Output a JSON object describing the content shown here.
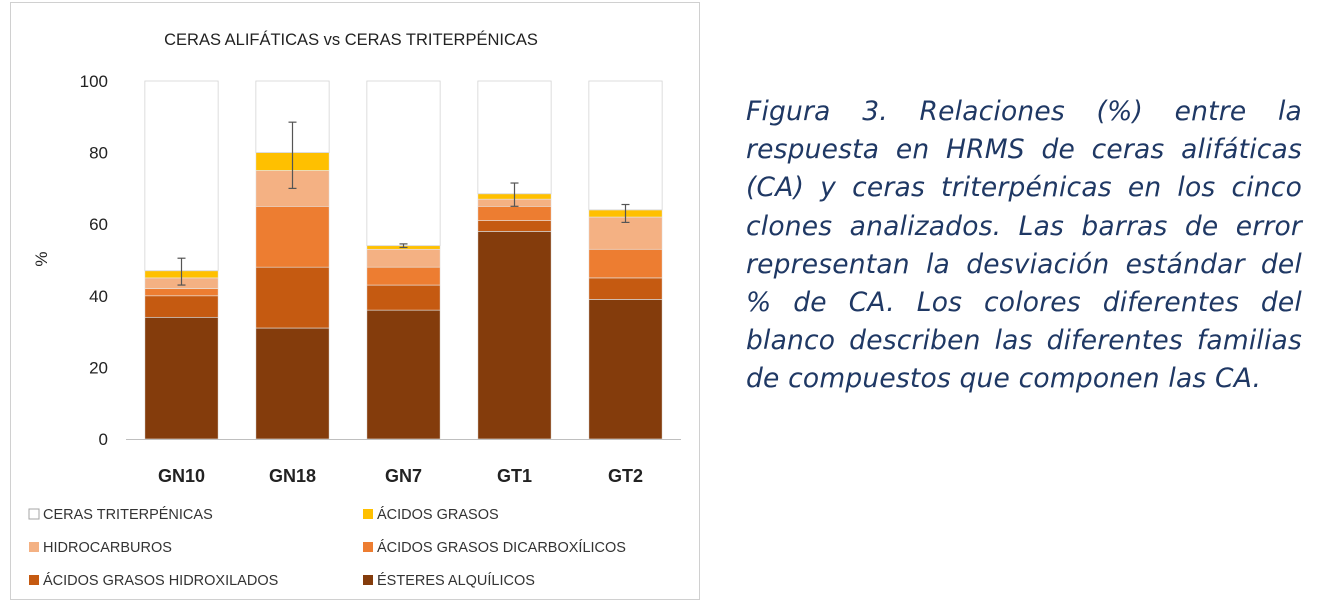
{
  "caption": "Figura 3. Relaciones (%) entre la respuesta en HRMS de ceras alifáticas (CA) y ceras triterpénicas en los cinco clones analizados. Las barras de error representan la desviación estándar del % de CA. Los colores diferentes del blanco describen las diferentes familias de compuestos que componen las CA.",
  "chart_data": {
    "type": "bar",
    "stacked": true,
    "title": "CERAS ALIFÁTICAS vs CERAS TRITERPÉNICAS",
    "xlabel": "",
    "ylabel": "%",
    "ylim": [
      0,
      100
    ],
    "yticks": [
      0,
      20,
      40,
      60,
      80,
      100
    ],
    "grid": false,
    "legend_position": "bottom",
    "categories": [
      "GN10",
      "GN18",
      "GN7",
      "GT1",
      "GT2"
    ],
    "series": [
      {
        "name": "ÉSTERES ALQUÍLICOS",
        "color": "#843c0c",
        "values": [
          34,
          31,
          36,
          58,
          39
        ]
      },
      {
        "name": "ÁCIDOS GRASOS HIDROXILADOS",
        "color": "#c55a11",
        "values": [
          6,
          17,
          7,
          3,
          6
        ]
      },
      {
        "name": "ÁCIDOS GRASOS DICARBOXÍLICOS",
        "color": "#ed7d31",
        "values": [
          2,
          17,
          5,
          4,
          8
        ]
      },
      {
        "name": "HIDROCARBUROS",
        "color": "#f4b183",
        "values": [
          3,
          10,
          5,
          2,
          9
        ]
      },
      {
        "name": "ÁCIDOS GRASOS",
        "color": "#ffc000",
        "values": [
          2,
          5,
          1,
          1.5,
          2
        ]
      },
      {
        "name": "CERAS TRITERPÉNICAS",
        "color": "#ffffff",
        "values": [
          53,
          20,
          46,
          31.5,
          36
        ]
      }
    ],
    "error_bars": {
      "series_total": "CA",
      "center": [
        47,
        79.5,
        54,
        68.5,
        63
      ],
      "low": [
        43,
        70,
        53.5,
        65,
        60.5
      ],
      "high": [
        50.5,
        88.5,
        54.5,
        71.5,
        65.5
      ]
    },
    "legend_order": [
      "CERAS TRITERPÉNICAS",
      "ÁCIDOS GRASOS",
      "HIDROCARBUROS",
      "ÁCIDOS GRASOS DICARBOXÍLICOS",
      "ÁCIDOS GRASOS HIDROXILADOS",
      "ÉSTERES ALQUÍLICOS"
    ]
  }
}
